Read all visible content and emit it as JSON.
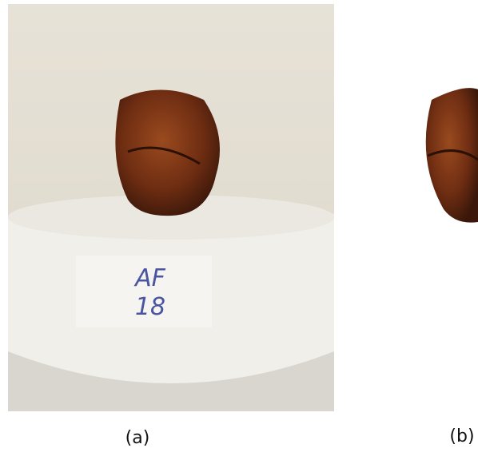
{
  "panels": [
    {
      "caption": "(a)",
      "tag_lines": [
        "AF",
        "18"
      ]
    },
    {
      "caption": "(b)"
    }
  ]
}
